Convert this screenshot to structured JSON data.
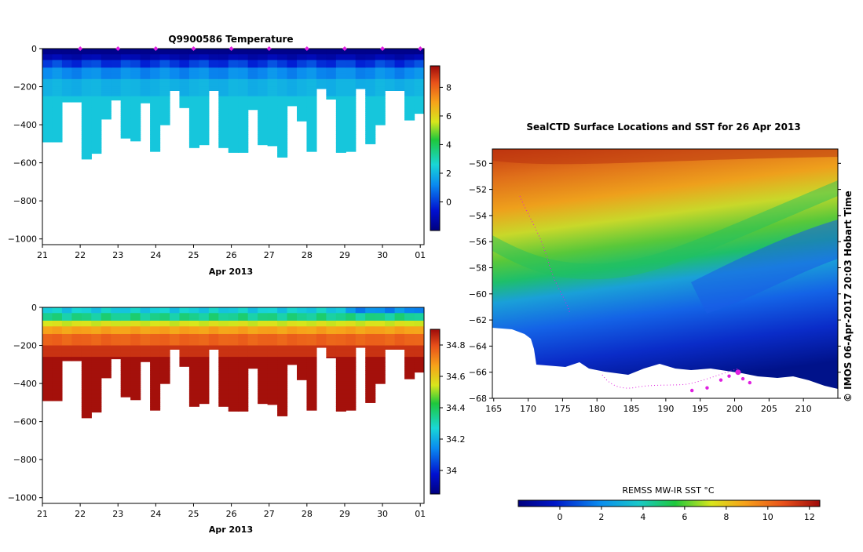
{
  "chart_data": [
    {
      "type": "heatmap",
      "title": "Q9900586  Temperature",
      "xlabel": "Apr 2013",
      "ylabel": "",
      "x_ticks": [
        "21",
        "22",
        "23",
        "24",
        "25",
        "26",
        "27",
        "28",
        "29",
        "30",
        "01"
      ],
      "y_ticks": [
        "0",
        "−200",
        "−400",
        "−600",
        "−800",
        "−1000"
      ],
      "ylim": [
        -1030,
        0
      ],
      "xlim": [
        21,
        31.1
      ],
      "max_depth_m": [
        490,
        490,
        280,
        280,
        580,
        550,
        370,
        270,
        470,
        485,
        285,
        540,
        400,
        220,
        310,
        520,
        505,
        220,
        520,
        545,
        545,
        320,
        505,
        510,
        570,
        300,
        380,
        540,
        210,
        265,
        545,
        540,
        210,
        500,
        400,
        220,
        220,
        375,
        340
      ],
      "colorbar": {
        "label": "",
        "range": [
          -2,
          9.5
        ],
        "ticks": [
          "0",
          "2",
          "4",
          "6",
          "8"
        ],
        "tick_values": [
          0,
          2,
          4,
          6,
          8
        ]
      },
      "profile_markers_day": [
        22,
        23,
        24,
        25,
        26,
        27,
        28,
        29,
        30,
        31
      ]
    },
    {
      "type": "heatmap",
      "title": "",
      "xlabel": "Apr 2013",
      "ylabel": "",
      "x_ticks": [
        "21",
        "22",
        "23",
        "24",
        "25",
        "26",
        "27",
        "28",
        "29",
        "30",
        "01"
      ],
      "y_ticks": [
        "0",
        "−200",
        "−400",
        "−600",
        "−800",
        "−1000"
      ],
      "ylim": [
        -1030,
        0
      ],
      "xlim": [
        21,
        31.1
      ],
      "max_depth_m": [
        490,
        490,
        280,
        280,
        580,
        550,
        370,
        270,
        470,
        485,
        285,
        540,
        400,
        220,
        310,
        520,
        505,
        220,
        520,
        545,
        545,
        320,
        505,
        510,
        570,
        300,
        380,
        540,
        210,
        265,
        545,
        540,
        210,
        500,
        400,
        220,
        220,
        375,
        340
      ],
      "colorbar": {
        "label": "",
        "range": [
          33.85,
          34.9
        ],
        "ticks": [
          "34",
          "34.2",
          "34.4",
          "34.6",
          "34.8"
        ],
        "tick_values": [
          34.0,
          34.2,
          34.4,
          34.6,
          34.8
        ]
      }
    },
    {
      "type": "heatmap",
      "title": "SealCTD Surface Locations and SST for 26 Apr 2013",
      "xlabel": "",
      "ylabel": "",
      "x_ticks": [
        "165",
        "170",
        "175",
        "180",
        "185",
        "190",
        "195",
        "200",
        "205",
        "210"
      ],
      "y_ticks": [
        "−50",
        "−52",
        "−54",
        "−56",
        "−58",
        "−60",
        "−62",
        "−64",
        "−66",
        "−68"
      ],
      "xlim": [
        164.8,
        215
      ],
      "ylim": [
        -68,
        -48.9
      ],
      "colorbar": {
        "label": "REMSS MW-IR SST °C",
        "range": [
          -2,
          12.5
        ],
        "ticks": [
          "0",
          "2",
          "4",
          "6",
          "8",
          "10",
          "12"
        ],
        "tick_values": [
          0,
          2,
          4,
          6,
          8,
          10,
          12
        ]
      },
      "locations": [
        {
          "lon": 198.0,
          "lat": -66.6
        },
        {
          "lon": 199.2,
          "lat": -66.3
        },
        {
          "lon": 200.5,
          "lat": -66.0
        },
        {
          "lon": 201.2,
          "lat": -66.5
        },
        {
          "lon": 202.2,
          "lat": -66.8
        },
        {
          "lon": 196.0,
          "lat": -67.2
        },
        {
          "lon": 193.8,
          "lat": -67.4
        }
      ]
    }
  ],
  "copyright": "©  IMOS 06-Apr-2017 20:03 Hobart Time",
  "colors": {
    "marker": "#e020e0",
    "land": "#ffffff"
  }
}
